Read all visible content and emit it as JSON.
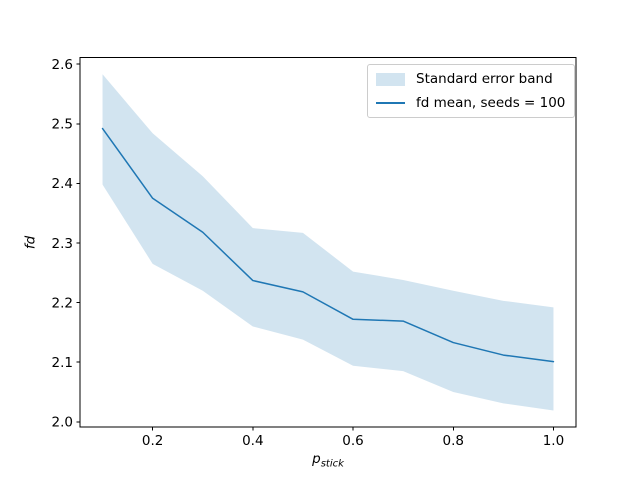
{
  "figure": {
    "background": "#ffffff"
  },
  "chart_data": {
    "type": "line",
    "title": "",
    "xlabel": "p_stick",
    "xlabel_base": "p",
    "xlabel_sub": "stick",
    "ylabel": "fd",
    "x": [
      0.1,
      0.2,
      0.3,
      0.4,
      0.5,
      0.6,
      0.7,
      0.8,
      0.9,
      1.0
    ],
    "series": [
      {
        "name": "fd mean, seeds = 100",
        "values": [
          2.492,
          2.375,
          2.318,
          2.237,
          2.218,
          2.172,
          2.169,
          2.133,
          2.112,
          2.101
        ],
        "color": "#1f77b4",
        "line_width": 1.5
      }
    ],
    "band": {
      "name": "Standard error band",
      "upper": [
        2.583,
        2.484,
        2.412,
        2.325,
        2.317,
        2.252,
        2.238,
        2.22,
        2.203,
        2.192
      ],
      "lower": [
        2.398,
        2.265,
        2.22,
        2.16,
        2.138,
        2.094,
        2.085,
        2.05,
        2.031,
        2.019
      ],
      "color": "#1f77b4",
      "opacity": 0.2
    },
    "xlim": [
      0.055,
      1.045
    ],
    "ylim": [
      1.991,
      2.611
    ],
    "x_ticks": {
      "values": [
        0.2,
        0.4,
        0.6,
        0.8,
        1.0
      ],
      "labels": [
        "0.2",
        "0.4",
        "0.6",
        "0.8",
        "1.0"
      ]
    },
    "y_ticks": {
      "values": [
        2.0,
        2.1,
        2.2,
        2.3,
        2.4,
        2.5,
        2.6
      ],
      "labels": [
        "2.0",
        "2.1",
        "2.2",
        "2.3",
        "2.4",
        "2.5",
        "2.6"
      ]
    },
    "grid": false,
    "axis_color": "#000000",
    "tick_label_color": "#000000",
    "legend": {
      "position": "upper right",
      "border_color": "#cccccc",
      "entries": [
        {
          "type": "patch",
          "label": "Standard error band"
        },
        {
          "type": "line",
          "label": "fd mean, seeds = 100"
        }
      ]
    }
  }
}
